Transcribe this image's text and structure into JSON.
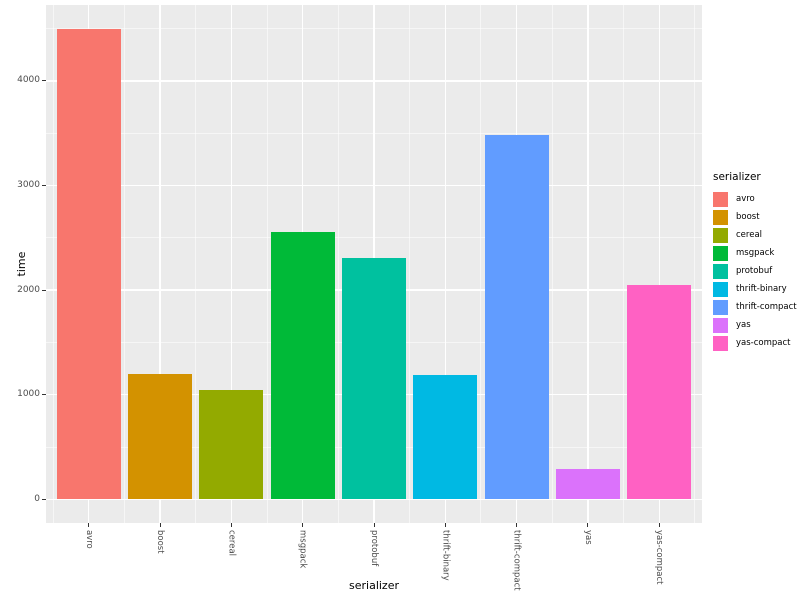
{
  "chart_data": {
    "type": "bar",
    "title": "",
    "xlabel": "serializer",
    "ylabel": "time",
    "categories": [
      "avro",
      "boost",
      "cereal",
      "msgpack",
      "protobuf",
      "thrift-binary",
      "thrift-compact",
      "yas",
      "yas-compact"
    ],
    "values": [
      4500,
      1200,
      1050,
      2560,
      2310,
      1190,
      3480,
      290,
      2050
    ],
    "colors": [
      "#F8766D",
      "#D39200",
      "#93AA00",
      "#00BA38",
      "#00C19F",
      "#00B9E3",
      "#619CFF",
      "#DB72FB",
      "#FF61C3"
    ],
    "ylim": [
      0,
      4500
    ],
    "yticks": [
      0,
      1000,
      2000,
      3000,
      4000
    ],
    "yticks_minor": [
      500,
      1500,
      2500,
      3500,
      4500
    ],
    "grid": true,
    "legend": {
      "title": "serializer",
      "position": "right"
    },
    "panel_bg": "#EBEBEB",
    "gridline_color": "#FFFFFF",
    "tick_label_color": "#4D4D4D",
    "tick_mark_color": "#333333"
  }
}
